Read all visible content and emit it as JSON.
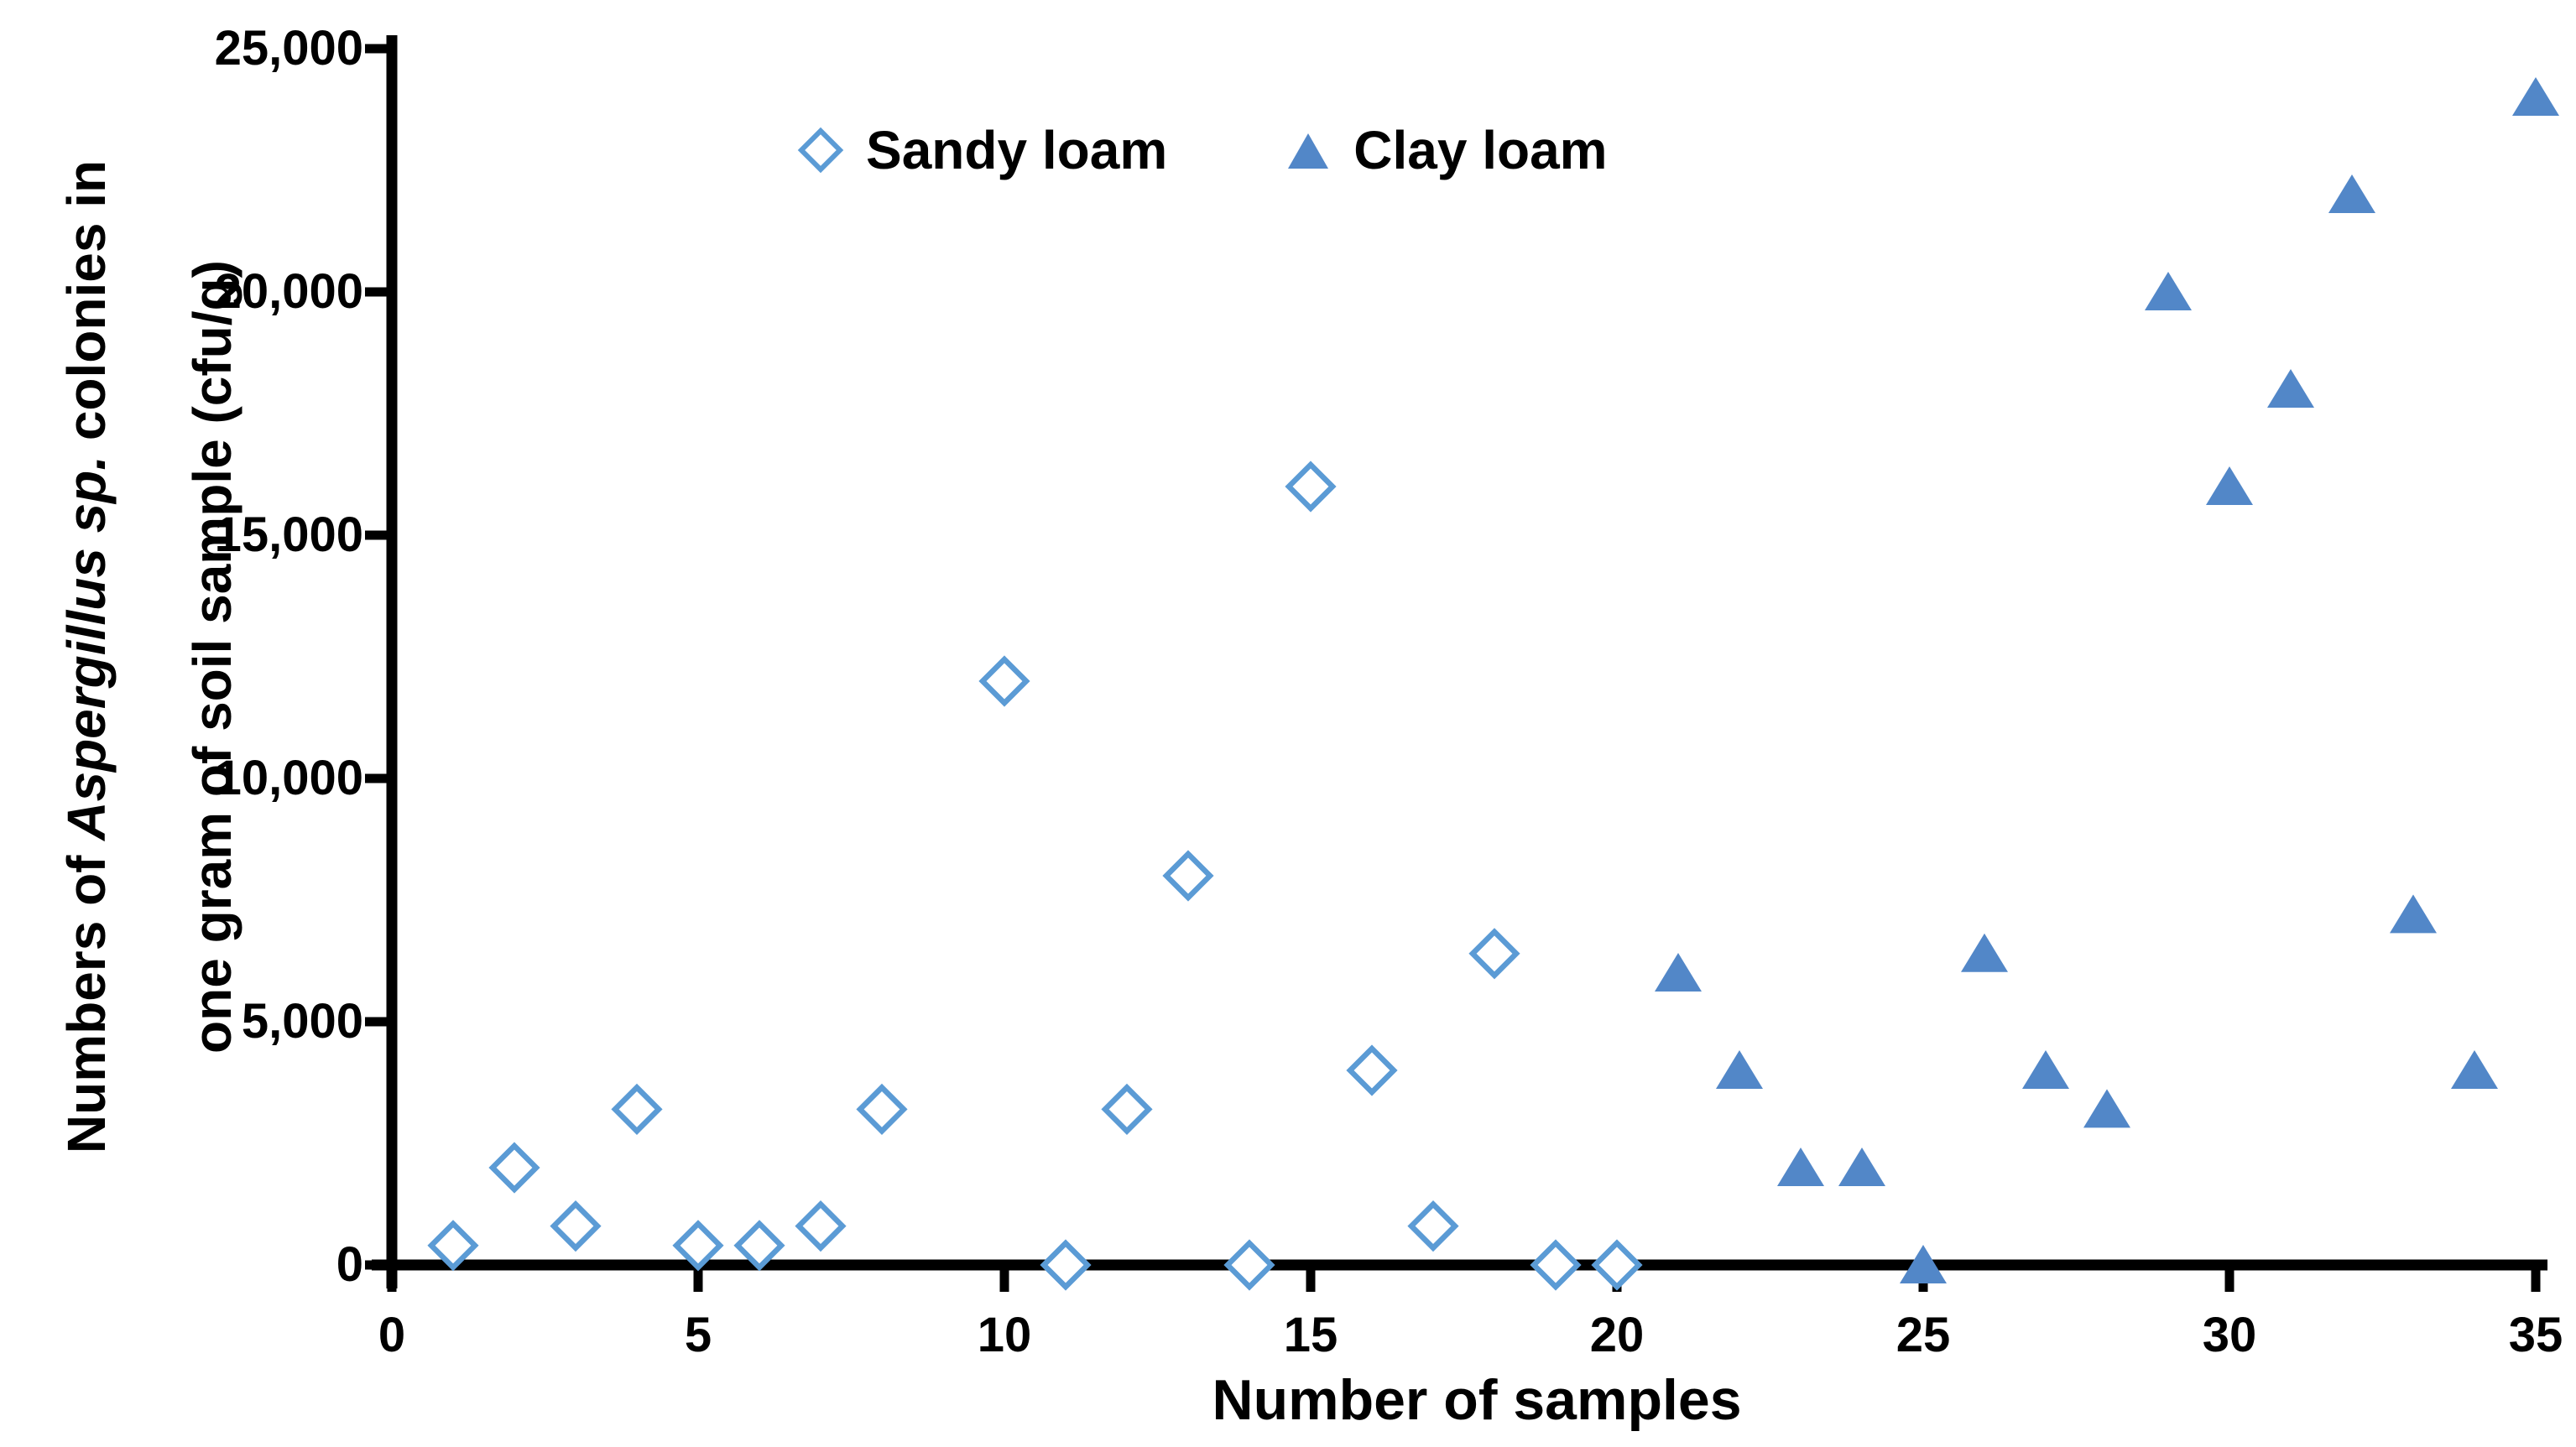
{
  "chart_data": {
    "type": "scatter",
    "title": "",
    "xlabel": "Number of samples",
    "ylabel_line1_pre": "Numbers of ",
    "ylabel_line1_italic": "Aspergillus sp.",
    "ylabel_line1_post": " colonies in",
    "ylabel_line2": "one gram of soil sample (cfu/g)",
    "xlim": [
      0,
      35
    ],
    "ylim": [
      0,
      25000
    ],
    "x_ticks": [
      0,
      5,
      10,
      15,
      20,
      25,
      30,
      35
    ],
    "y_ticks": [
      0,
      5000,
      10000,
      15000,
      20000,
      25000
    ],
    "y_tick_labels": [
      "0",
      "5,000",
      "10,000",
      "15,000",
      "20,000",
      "25,000"
    ],
    "grid": false,
    "legend_position": "top-center-inside",
    "series": [
      {
        "name": "Sandy loam",
        "marker": "open-diamond",
        "color": "#5B9BD5",
        "points": [
          [
            1,
            400
          ],
          [
            2,
            2000
          ],
          [
            3,
            800
          ],
          [
            4,
            3200
          ],
          [
            5,
            400
          ],
          [
            6,
            400
          ],
          [
            7,
            800
          ],
          [
            8,
            3200
          ],
          [
            10,
            12000
          ],
          [
            11,
            0
          ],
          [
            12,
            3200
          ],
          [
            13,
            8000
          ],
          [
            14,
            0
          ],
          [
            15,
            16000
          ],
          [
            16,
            4000
          ],
          [
            17,
            800
          ],
          [
            18,
            6400
          ],
          [
            19,
            0
          ],
          [
            20,
            0
          ]
        ]
      },
      {
        "name": "Clay loam",
        "marker": "filled-triangle",
        "color": "#5287C8",
        "points": [
          [
            21,
            6000
          ],
          [
            22,
            4000
          ],
          [
            23,
            2000
          ],
          [
            24,
            2000
          ],
          [
            25,
            0
          ],
          [
            26,
            6400
          ],
          [
            27,
            4000
          ],
          [
            28,
            3200
          ],
          [
            29,
            20000
          ],
          [
            30,
            16000
          ],
          [
            31,
            18000
          ],
          [
            32,
            22000
          ],
          [
            33,
            7200
          ],
          [
            34,
            4000
          ],
          [
            35,
            24000
          ]
        ]
      }
    ]
  },
  "colors": {
    "axis": "#000000",
    "sandy_marker": "#5B9BD5",
    "clay_marker": "#5287C8",
    "background": "#ffffff"
  }
}
